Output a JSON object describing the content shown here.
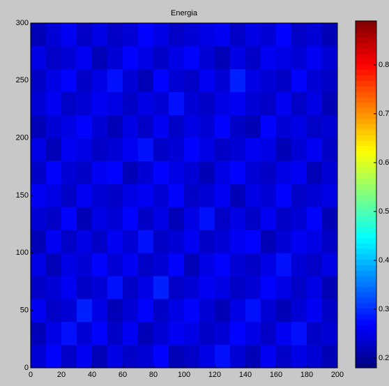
{
  "chart_data": {
    "type": "heatmap",
    "title": "Energia",
    "colormap": "jet",
    "xlim": [
      0,
      200
    ],
    "ylim": [
      0,
      300
    ],
    "xticks": [
      0,
      20,
      40,
      60,
      80,
      100,
      120,
      140,
      160,
      180,
      200
    ],
    "yticks": [
      0,
      50,
      100,
      150,
      200,
      250,
      300
    ],
    "clim": [
      0.18,
      0.89
    ],
    "cticks": [
      0.2,
      0.3,
      0.4,
      0.5,
      0.6,
      0.7,
      0.8
    ],
    "x_edges": [
      0,
      10,
      20,
      30,
      40,
      50,
      60,
      70,
      80,
      90,
      100,
      110,
      120,
      130,
      140,
      150,
      160,
      170,
      180,
      190,
      200
    ],
    "y_edges": [
      0,
      20,
      40,
      60,
      80,
      100,
      120,
      140,
      160,
      180,
      200,
      220,
      240,
      260,
      280,
      300
    ],
    "z": [
      [
        0.24,
        0.27,
        0.23,
        0.26,
        0.22,
        0.25,
        0.23,
        0.24,
        0.27,
        0.22,
        0.23,
        0.25,
        0.28,
        0.24,
        0.22,
        0.26,
        0.23,
        0.25,
        0.24,
        0.22
      ],
      [
        0.22,
        0.25,
        0.28,
        0.24,
        0.27,
        0.23,
        0.26,
        0.22,
        0.24,
        0.26,
        0.25,
        0.23,
        0.24,
        0.27,
        0.25,
        0.23,
        0.26,
        0.28,
        0.23,
        0.24
      ],
      [
        0.26,
        0.23,
        0.24,
        0.29,
        0.25,
        0.22,
        0.24,
        0.27,
        0.23,
        0.25,
        0.27,
        0.24,
        0.22,
        0.25,
        0.28,
        0.24,
        0.22,
        0.24,
        0.26,
        0.23
      ],
      [
        0.23,
        0.24,
        0.26,
        0.23,
        0.24,
        0.28,
        0.23,
        0.25,
        0.29,
        0.23,
        0.24,
        0.26,
        0.25,
        0.23,
        0.24,
        0.27,
        0.25,
        0.23,
        0.25,
        0.22
      ],
      [
        0.25,
        0.22,
        0.25,
        0.24,
        0.27,
        0.24,
        0.26,
        0.23,
        0.24,
        0.27,
        0.22,
        0.25,
        0.27,
        0.24,
        0.23,
        0.25,
        0.28,
        0.24,
        0.23,
        0.25
      ],
      [
        0.22,
        0.26,
        0.23,
        0.25,
        0.23,
        0.26,
        0.24,
        0.28,
        0.23,
        0.24,
        0.26,
        0.23,
        0.24,
        0.26,
        0.27,
        0.22,
        0.24,
        0.26,
        0.25,
        0.23
      ],
      [
        0.24,
        0.23,
        0.27,
        0.22,
        0.25,
        0.24,
        0.27,
        0.23,
        0.25,
        0.22,
        0.25,
        0.28,
        0.23,
        0.25,
        0.23,
        0.26,
        0.23,
        0.24,
        0.27,
        0.22
      ],
      [
        0.26,
        0.25,
        0.23,
        0.26,
        0.24,
        0.23,
        0.25,
        0.26,
        0.24,
        0.27,
        0.23,
        0.24,
        0.26,
        0.22,
        0.25,
        0.24,
        0.27,
        0.23,
        0.24,
        0.25
      ],
      [
        0.23,
        0.27,
        0.24,
        0.23,
        0.26,
        0.27,
        0.22,
        0.24,
        0.27,
        0.25,
        0.24,
        0.22,
        0.25,
        0.27,
        0.24,
        0.23,
        0.25,
        0.26,
        0.22,
        0.24
      ],
      [
        0.25,
        0.22,
        0.26,
        0.25,
        0.23,
        0.24,
        0.26,
        0.28,
        0.23,
        0.24,
        0.27,
        0.25,
        0.23,
        0.24,
        0.26,
        0.25,
        0.22,
        0.24,
        0.26,
        0.23
      ],
      [
        0.22,
        0.24,
        0.25,
        0.27,
        0.24,
        0.22,
        0.25,
        0.23,
        0.26,
        0.23,
        0.25,
        0.24,
        0.27,
        0.23,
        0.22,
        0.27,
        0.24,
        0.25,
        0.23,
        0.24
      ],
      [
        0.24,
        0.26,
        0.23,
        0.24,
        0.26,
        0.25,
        0.23,
        0.25,
        0.24,
        0.28,
        0.24,
        0.23,
        0.25,
        0.26,
        0.24,
        0.23,
        0.26,
        0.23,
        0.25,
        0.22
      ],
      [
        0.23,
        0.25,
        0.27,
        0.23,
        0.25,
        0.28,
        0.24,
        0.22,
        0.27,
        0.24,
        0.23,
        0.26,
        0.24,
        0.29,
        0.25,
        0.24,
        0.23,
        0.27,
        0.24,
        0.23
      ],
      [
        0.25,
        0.23,
        0.24,
        0.26,
        0.22,
        0.24,
        0.27,
        0.25,
        0.23,
        0.25,
        0.27,
        0.24,
        0.22,
        0.25,
        0.23,
        0.26,
        0.25,
        0.24,
        0.26,
        0.24
      ],
      [
        0.22,
        0.24,
        0.26,
        0.23,
        0.25,
        0.23,
        0.24,
        0.27,
        0.25,
        0.23,
        0.24,
        0.25,
        0.26,
        0.23,
        0.25,
        0.24,
        0.27,
        0.23,
        0.24,
        0.22
      ]
    ]
  }
}
